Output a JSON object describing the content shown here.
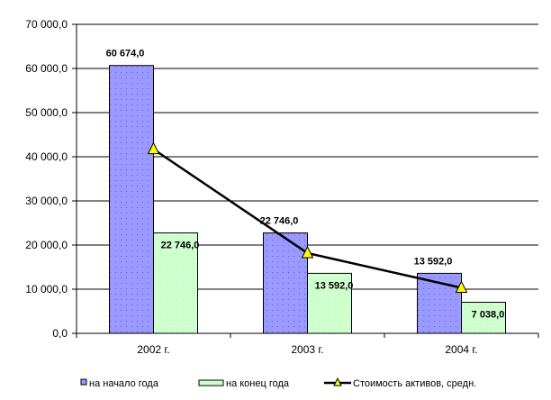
{
  "chart_data": {
    "type": "bar",
    "categories": [
      "2002 г.",
      "2003 г.",
      "2004 г."
    ],
    "series": [
      {
        "name": "на начало года",
        "kind": "bar",
        "color": "#9999FF",
        "values": [
          60674.0,
          22746.0,
          13592.0
        ],
        "labels": [
          "60 674,0",
          "22 746,0",
          "13 592,0"
        ]
      },
      {
        "name": "на конец года",
        "kind": "bar",
        "color": "#CCFFCC",
        "values": [
          22746.0,
          13592.0,
          7038.0
        ],
        "labels": [
          "22 746,0",
          "13 592,0",
          "7 038,0"
        ]
      },
      {
        "name": "Стоимость активов, средн.",
        "kind": "line",
        "color": "#000000",
        "marker": "triangle",
        "marker_color": "#FFFF00",
        "values": [
          41710.0,
          18169.0,
          10315.0
        ]
      }
    ],
    "ylim": [
      0,
      70000
    ],
    "yticks": [
      0,
      10000,
      20000,
      30000,
      40000,
      50000,
      60000,
      70000
    ],
    "ytick_labels": [
      "0,0",
      "10 000,0",
      "20 000,0",
      "30 000,0",
      "40 000,0",
      "50 000,0",
      "60 000,0",
      "70 000,0"
    ],
    "grid": true,
    "legend_position": "bottom"
  }
}
